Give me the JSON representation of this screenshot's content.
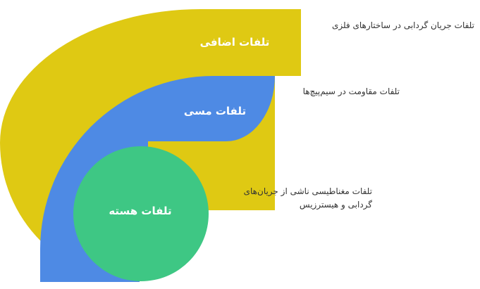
{
  "colors": {
    "extra": "#dfc913",
    "copper": "#4e8ae4",
    "core": "#3ec784",
    "label_text": "#ffffff",
    "description_text": "#333333"
  },
  "bands": [
    {
      "id": "extra",
      "label": "تلفات اضافی",
      "description": "تلفات جریان گردابی در ساختارهای فلزی"
    },
    {
      "id": "copper",
      "label": "تلفات مسی",
      "description": "تلفات مقاومت در سیم‌پیچ‌ها"
    },
    {
      "id": "core",
      "label": "تلفات هسته",
      "description": "تلفات مغناطیسی ناشی از جریان‌های گردابی و هیسترزیس"
    }
  ]
}
